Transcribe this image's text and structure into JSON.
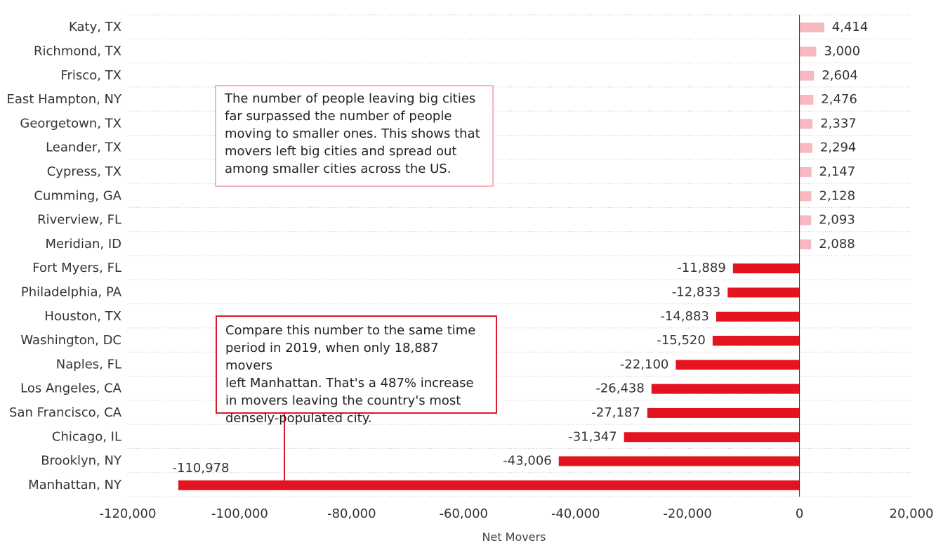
{
  "chart_data": {
    "type": "bar",
    "orientation": "horizontal",
    "categories": [
      "Katy, TX",
      "Richmond, TX",
      "Frisco, TX",
      "East Hampton, NY",
      "Georgetown, TX",
      "Leander, TX",
      "Cypress, TX",
      "Cumming, GA",
      "Riverview, FL",
      "Meridian, ID",
      "Fort Myers, FL",
      "Philadelphia, PA",
      "Houston, TX",
      "Washington, DC",
      "Naples, FL",
      "Los Angeles, CA",
      "San Francisco, CA",
      "Chicago, IL",
      "Brooklyn, NY",
      "Manhattan, NY"
    ],
    "values": [
      4414,
      3000,
      2604,
      2476,
      2337,
      2294,
      2147,
      2128,
      2093,
      2088,
      -11889,
      -12833,
      -14883,
      -15520,
      -22100,
      -26438,
      -27187,
      -31347,
      -43006,
      -110978
    ],
    "value_labels": [
      "4,414",
      "3,000",
      "2,604",
      "2,476",
      "2,337",
      "2,294",
      "2,147",
      "2,128",
      "2,093",
      "2,088",
      "-11,889",
      "-12,833",
      "-14,883",
      "-15,520",
      "-22,100",
      "-26,438",
      "-27,187",
      "-31,347",
      "-43,006",
      "-110,978"
    ],
    "xlabel": "Net Movers",
    "xlim": [
      -120000,
      20000
    ],
    "xticks": [
      -120000,
      -100000,
      -80000,
      -60000,
      -40000,
      -20000,
      0,
      20000
    ],
    "xtick_labels": [
      "-120,000",
      "-100,000",
      "-80,000",
      "-60,000",
      "-40,000",
      "-20,000",
      "0",
      "20,000"
    ],
    "grid": "horizontal dotted",
    "legend": "none",
    "colors": {
      "positive": "#f7b8c0",
      "negative": "#e3141f",
      "note_border_top": "#f4b6bd",
      "note_border_bottom": "#d91a2a"
    }
  },
  "annotations": {
    "top_lines": [
      "The number of people leaving big cities",
      "far surpassed the number of people",
      "moving to smaller ones. This shows that",
      "movers left big cities and spread out",
      "among smaller cities across the US."
    ],
    "bottom_lines": [
      "Compare this number to the same time",
      "period in 2019, when only 18,887 movers",
      "left Manhattan. That's a 487% increase",
      "in movers leaving the country's most",
      "densely-populated city."
    ]
  }
}
